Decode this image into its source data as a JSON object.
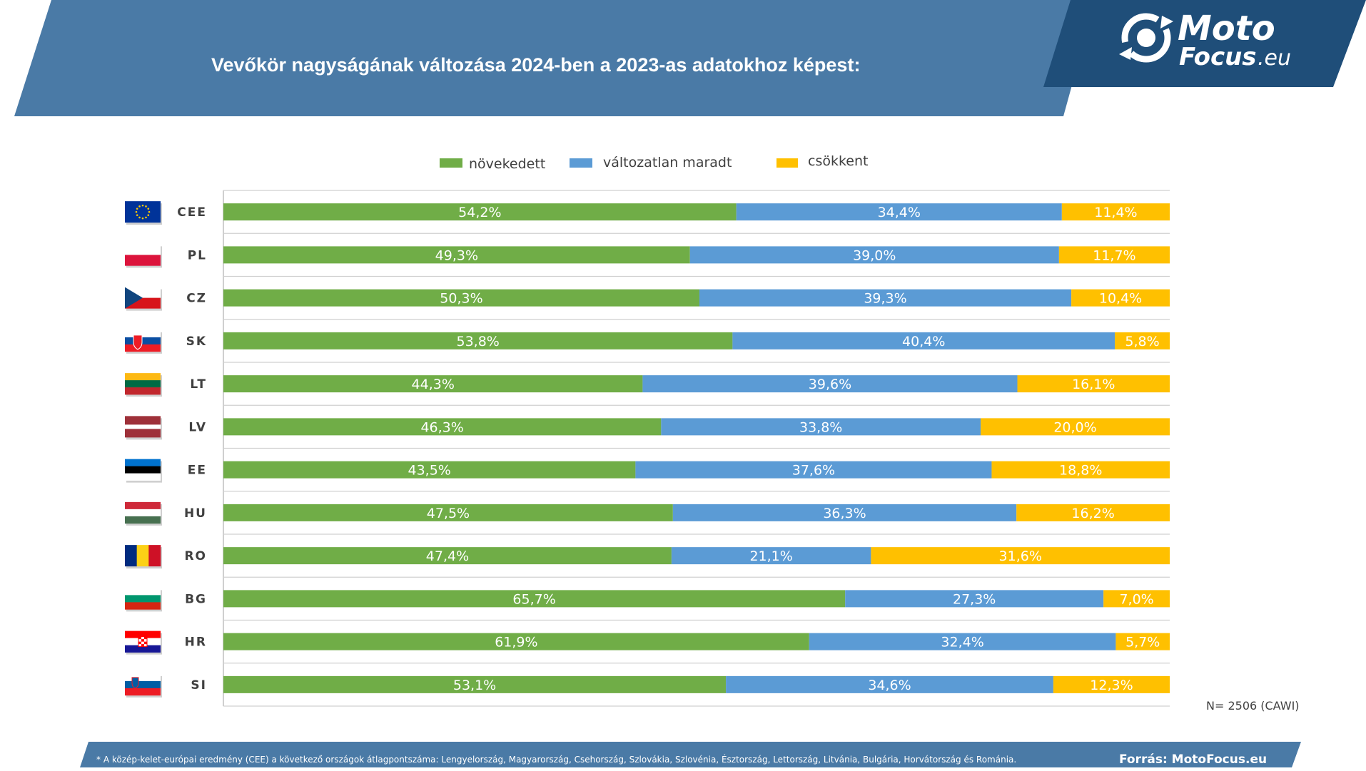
{
  "header": {
    "title": "Vevőkör nagyságának változása 2024-ben a 2023-as adatokhoz képest:",
    "logo_line1": "Moto",
    "logo_line2": "Focus",
    "logo_suffix": ".eu"
  },
  "colors": {
    "header_bg": "#4a7aa6",
    "logo_bg": "#1f4e79",
    "footer_bg": "#4a7aa6",
    "grid": "#d0d0d0"
  },
  "chart_data": {
    "type": "bar",
    "orientation": "horizontal",
    "stacked": "100%",
    "categories": [
      "CEE",
      "PL",
      "CZ",
      "SK",
      "LT",
      "LV",
      "EE",
      "HU",
      "RO",
      "BG",
      "HR",
      "SI"
    ],
    "series": [
      {
        "name": "növekedett",
        "color": "#70ad47",
        "values": [
          54.2,
          49.3,
          50.3,
          53.8,
          44.3,
          46.3,
          43.5,
          47.5,
          47.4,
          65.7,
          61.9,
          53.1
        ],
        "labels": [
          "54,2%",
          "49,3%",
          "50,3%",
          "53,8%",
          "44,3%",
          "46,3%",
          "43,5%",
          "47,5%",
          "47,4%",
          "65,7%",
          "61,9%",
          "53,1%"
        ]
      },
      {
        "name": "változatlan maradt",
        "color": "#5b9bd5",
        "values": [
          34.4,
          39.0,
          39.3,
          40.4,
          39.6,
          33.8,
          37.6,
          36.3,
          21.1,
          27.3,
          32.4,
          34.6
        ],
        "labels": [
          "34,4%",
          "39,0%",
          "39,3%",
          "40,4%",
          "39,6%",
          "33,8%",
          "37,6%",
          "36,3%",
          "21,1%",
          "27,3%",
          "32,4%",
          "34,6%"
        ]
      },
      {
        "name": "csökkent",
        "color": "#ffc000",
        "values": [
          11.4,
          11.7,
          10.4,
          5.8,
          16.1,
          20.0,
          18.8,
          16.2,
          31.6,
          7.0,
          5.7,
          12.3
        ],
        "labels": [
          "11,4%",
          "11,7%",
          "10,4%",
          "5,8%",
          "16,1%",
          "20,0%",
          "18,8%",
          "16,2%",
          "31,6%",
          "7,0%",
          "5,7%",
          "12,3%"
        ]
      }
    ],
    "legend_position": "top",
    "grid": true,
    "flags": [
      {
        "type": "eu",
        "colors": [
          "#003399",
          "#ffcc00"
        ]
      },
      {
        "type": "h",
        "colors": [
          "#ffffff",
          "#dc143c"
        ]
      },
      {
        "type": "cz",
        "colors": [
          "#ffffff",
          "#d7141a",
          "#11457e"
        ]
      },
      {
        "type": "h",
        "colors": [
          "#ffffff",
          "#0b4ea2",
          "#ee1c25"
        ],
        "emblem": "sk"
      },
      {
        "type": "h",
        "colors": [
          "#fdb913",
          "#006a44",
          "#c1272d"
        ]
      },
      {
        "type": "lv",
        "colors": [
          "#9e3039",
          "#ffffff",
          "#9e3039"
        ]
      },
      {
        "type": "h",
        "colors": [
          "#0072ce",
          "#000000",
          "#ffffff"
        ]
      },
      {
        "type": "h",
        "colors": [
          "#ce2939",
          "#ffffff",
          "#477050"
        ]
      },
      {
        "type": "v",
        "colors": [
          "#002b7f",
          "#fcd116",
          "#ce1126"
        ]
      },
      {
        "type": "h",
        "colors": [
          "#ffffff",
          "#00966e",
          "#d62612"
        ]
      },
      {
        "type": "h",
        "colors": [
          "#ff0000",
          "#ffffff",
          "#171796"
        ],
        "emblem": "hr"
      },
      {
        "type": "h",
        "colors": [
          "#ffffff",
          "#005da4",
          "#ed1c24"
        ],
        "emblem": "si"
      }
    ]
  },
  "sample_note": "N= 2506 (CAWI)",
  "footer": {
    "note": "* A közép-kelet-európai eredmény (CEE) a következő országok átlagpontszáma: Lengyelország, Magyarország, Csehország, Szlovákia, Szlovénia, Észtország, Lettország, Litvánia, Bulgária, Horvátország és Románia.",
    "source": "Forrás: MotoFocus.eu"
  }
}
